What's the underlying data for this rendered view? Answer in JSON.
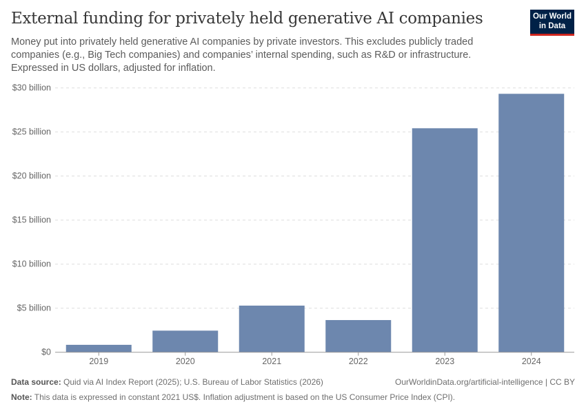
{
  "title": "External funding for privately held generative AI companies",
  "subtitle": "Money put into privately held generative AI companies by private investors. This excludes publicly traded companies (e.g., Big Tech companies) and companies’ internal spending, such as R&D or infrastructure. Expressed in US dollars, adjusted for inflation.",
  "logo": {
    "line1": "Our World",
    "line2": "in Data"
  },
  "footer": {
    "source_label": "Data source:",
    "source": "Quid via AI Index Report (2025); U.S. Bureau of Labor Statistics (2026)",
    "url": "OurWorldinData.org/artificial-intelligence | CC BY",
    "note_label": "Note:",
    "note": "This data is expressed in constant 2021 US$. Inflation adjustment is based on the US Consumer Price Index (CPI)."
  },
  "chart_data": {
    "type": "bar",
    "categories": [
      "2019",
      "2020",
      "2021",
      "2022",
      "2023",
      "2024"
    ],
    "values": [
      0.84,
      2.45,
      5.29,
      3.65,
      25.42,
      29.33
    ],
    "unit": "billion US$",
    "ylim": [
      0,
      30
    ],
    "yticks": [
      0,
      5,
      10,
      15,
      20,
      25,
      30
    ],
    "ytick_labels": [
      "$0",
      "$5 billion",
      "$10 billion",
      "$15 billion",
      "$20 billion",
      "$25 billion",
      "$30 billion"
    ],
    "grid": "horizontal dashed",
    "bar_color": "#6d87ae"
  }
}
